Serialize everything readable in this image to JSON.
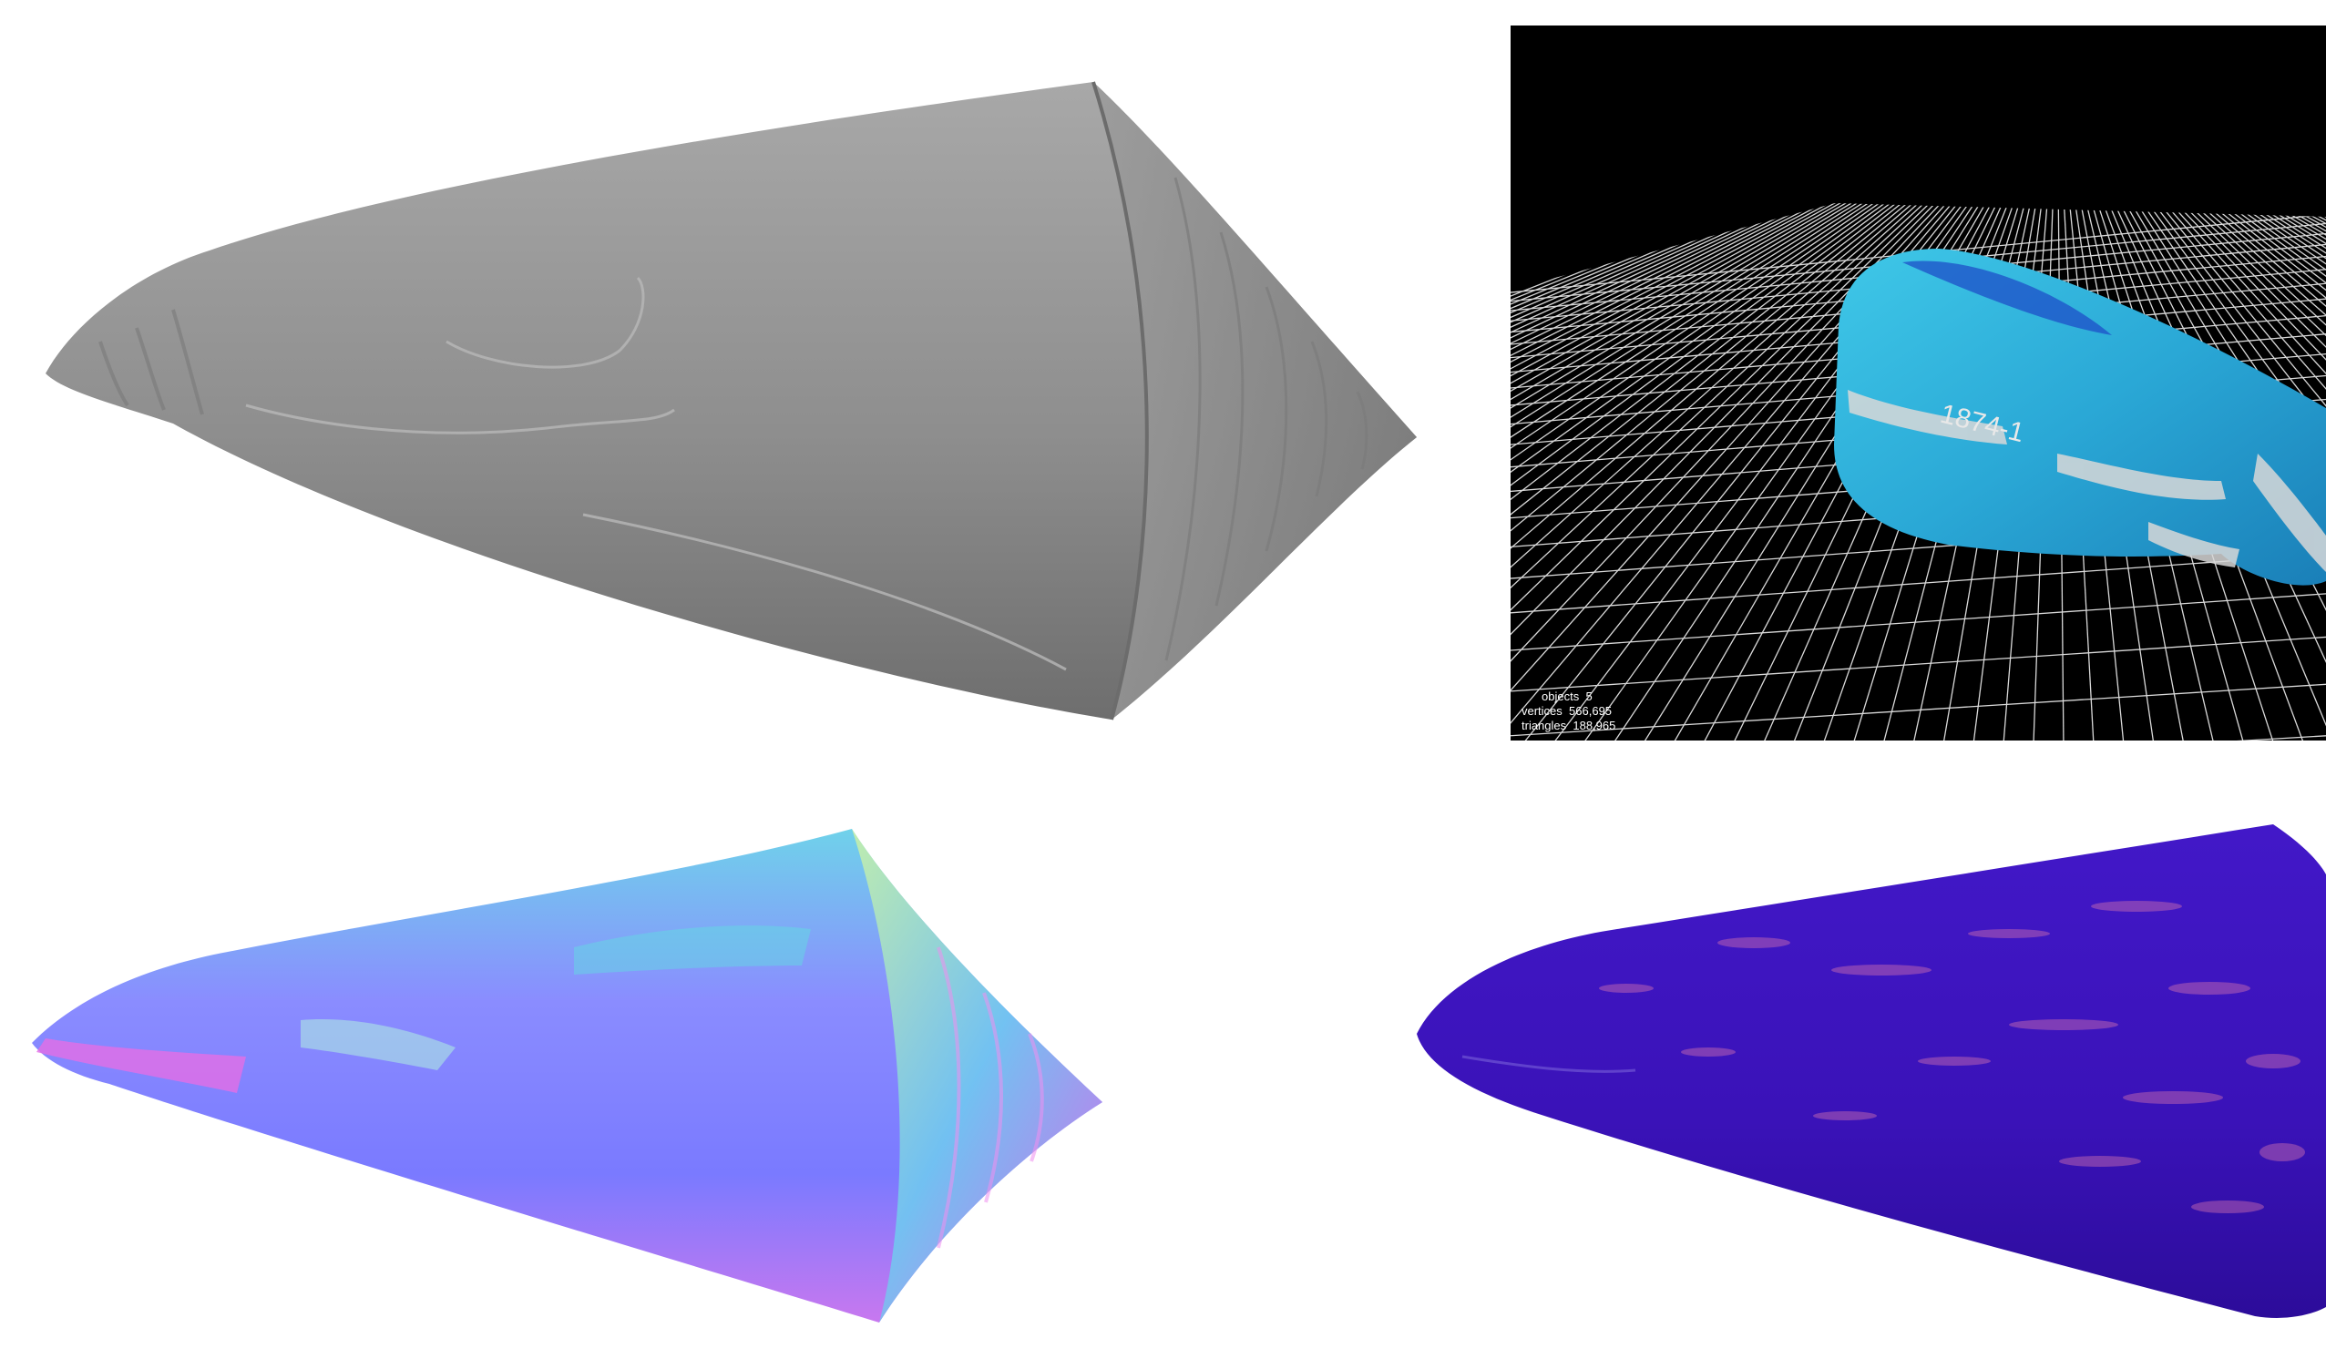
{
  "viewport": {
    "stats": {
      "objects_label": "objects",
      "objects_value": "5",
      "vertices_label": "vertices",
      "vertices_value": "566,695",
      "triangles_label": "triangles",
      "triangles_value": "188,965"
    },
    "specimen_label": "1874-1",
    "colors": {
      "background": "#000000",
      "grid": "#ffffff",
      "model": "#2fb4d8"
    }
  },
  "panels": {
    "grey_render": {
      "color": "#8a8a8a"
    },
    "normal_map": {
      "colors": [
        "#7f7fff",
        "#e070e8",
        "#6ad0e8",
        "#c0f0a0"
      ]
    },
    "ambient_map": {
      "colors": [
        "#3a12b8",
        "#d070b0"
      ]
    }
  }
}
